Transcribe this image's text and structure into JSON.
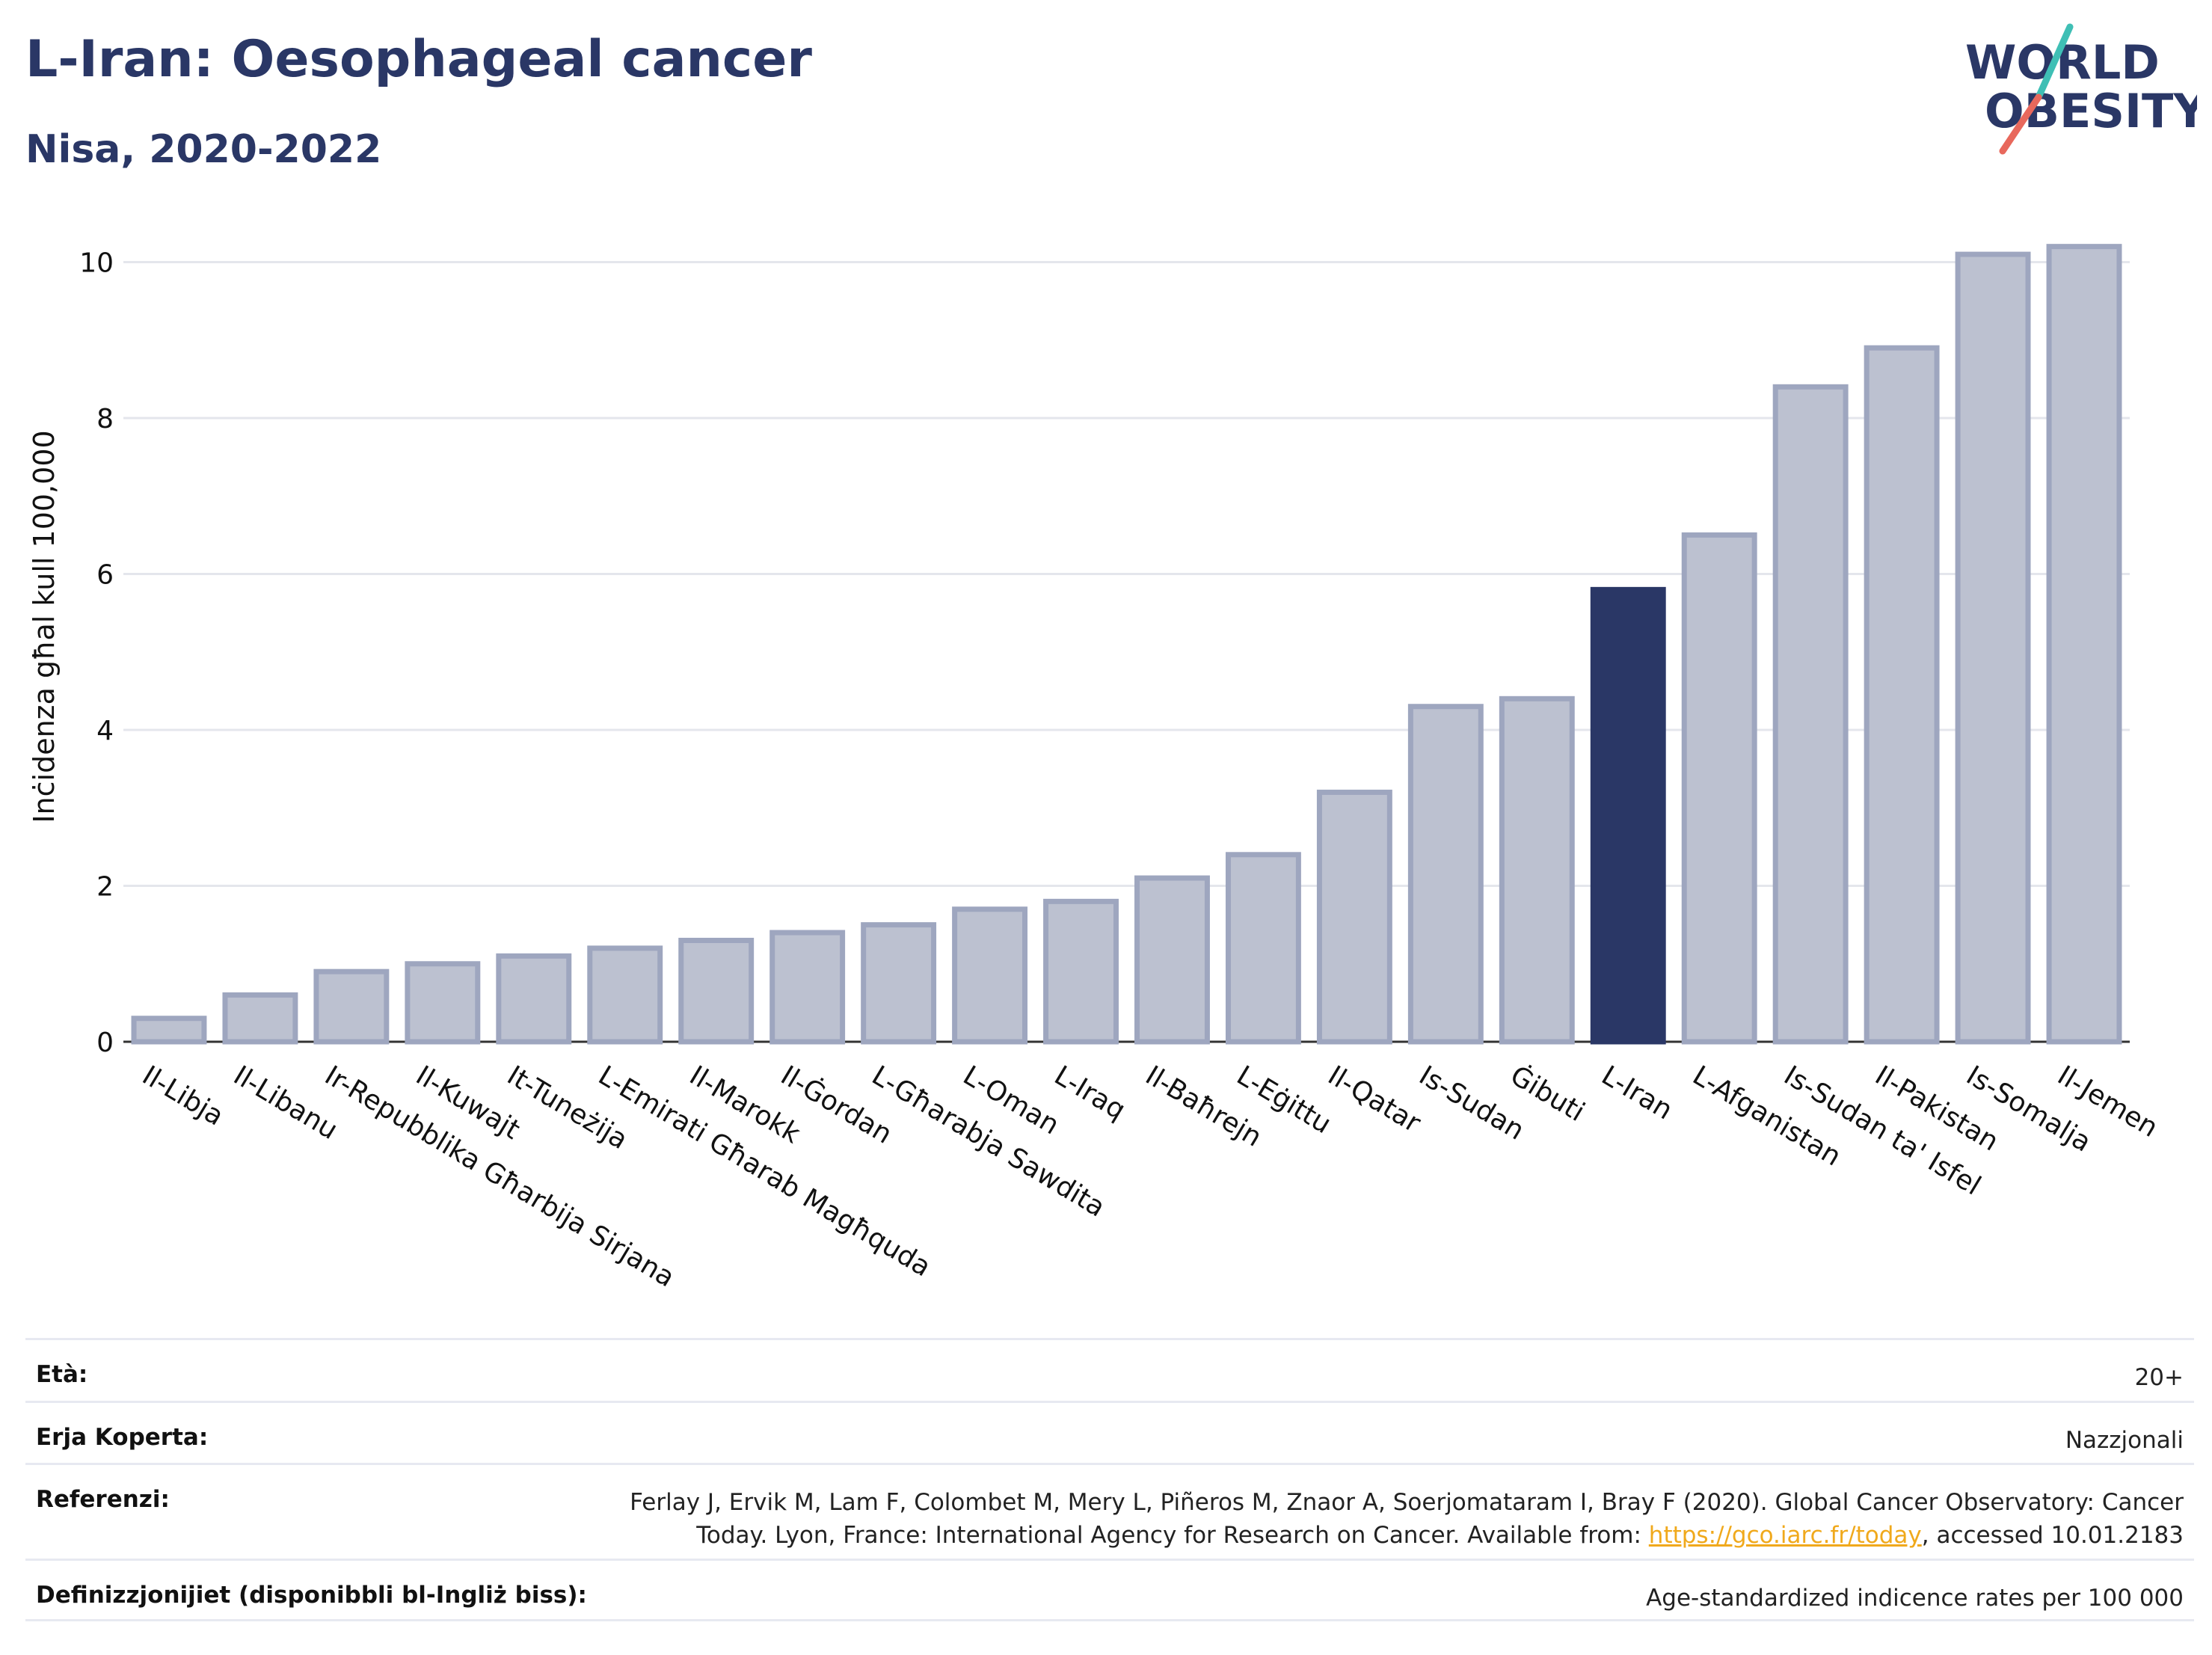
{
  "header": {
    "title": "L-Iran: Oesophageal cancer",
    "subtitle": "Nisa, 2020-2022"
  },
  "logo": {
    "line1": "WORLD",
    "line2": "OBESITY",
    "colors": {
      "text": "#2a3766",
      "slash_teal": "#3fbfb5",
      "slash_red": "#e8685c"
    }
  },
  "chart_data": {
    "type": "bar",
    "ylabel": "Inċidenza għal kull 100,000",
    "ylim": [
      0,
      10.6
    ],
    "yticks": [
      0,
      2,
      4,
      6,
      8,
      10
    ],
    "grid": true,
    "highlight": "L-Iran",
    "colors": {
      "bar": "#bcc1d0",
      "bar_border": "#9ea6bf",
      "highlight": "#2a3766",
      "grid": "#e4e6ec"
    },
    "categories": [
      "Il-Libja",
      "Il-Libanu",
      "Ir-Repubblika Għarbija Sirjana",
      "Il-Kuwajt",
      "It-Tuneżija",
      "L-Emirati Għarab Magħquda",
      "Il-Marokk",
      "Il-Ġordan",
      "L-Għarabja Sawdita",
      "L-Oman",
      "L-Iraq",
      "Il-Baħrejn",
      "L-Eġittu",
      "Il-Qatar",
      "Is-Sudan",
      "Ġibuti",
      "L-Iran",
      "L-Afganistan",
      "Is-Sudan ta' Isfel",
      "Il-Pakistan",
      "Is-Somalja",
      "Il-Jemen"
    ],
    "values": [
      0.3,
      0.6,
      0.9,
      1.0,
      1.1,
      1.2,
      1.3,
      1.4,
      1.5,
      1.7,
      1.8,
      2.1,
      2.4,
      3.2,
      4.3,
      4.4,
      5.8,
      6.5,
      8.4,
      8.9,
      10.1,
      10.2
    ]
  },
  "info": {
    "age_label": "Età:",
    "age_value": "20+",
    "area_label": "Erja Koperta:",
    "area_value": "Nazzjonali",
    "ref_label": "Referenzi:",
    "ref_line1": "Ferlay J, Ervik M, Lam F, Colombet M, Mery L, Piñeros M, Znaor A, Soerjomataram I, Bray F (2020). Global Cancer Observatory: Cancer",
    "ref_line2_pre": "Today. Lyon, France: International Agency for Research on Cancer. Available from: ",
    "ref_link": "https://gco.iarc.fr/today",
    "ref_line2_post": ", accessed 10.01.2183",
    "def_label": "Definizzjonijiet (disponibbli bl-Ingliż biss):",
    "def_value": "Age-standardized indicence rates per 100 000"
  }
}
